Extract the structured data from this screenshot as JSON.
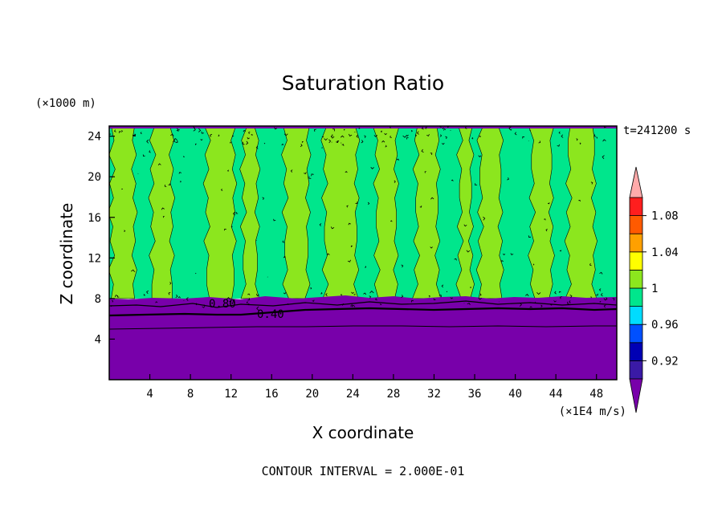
{
  "chart_data": {
    "type": "heatmap",
    "title": "Saturation Ratio",
    "xlabel": "X coordinate",
    "ylabel": "Z coordinate",
    "x_units": "(×1E4 m/s)",
    "y_units": "(×1000 m)",
    "time_label": "t=241200 s",
    "footer": "CONTOUR INTERVAL = 2.000E-01",
    "xlim": [
      0,
      50
    ],
    "ylim": [
      0,
      25
    ],
    "x_ticks": [
      "4",
      "8",
      "12",
      "16",
      "20",
      "24",
      "28",
      "32",
      "36",
      "40",
      "44",
      "48"
    ],
    "y_ticks": [
      "4",
      "8",
      "12",
      "16",
      "20",
      "24"
    ],
    "contour_labels": [
      "0.80",
      "0.40"
    ],
    "colorbar": {
      "levels": [
        0.9,
        0.92,
        0.94,
        0.96,
        0.98,
        1.0,
        1.02,
        1.04,
        1.06,
        1.08,
        1.1
      ],
      "tick_labels": [
        "0.92",
        "0.96",
        "1",
        "1.04",
        "1.08"
      ],
      "colors": [
        "#3a1aa6",
        "#0000b4",
        "#0050ff",
        "#00dcff",
        "#00e68c",
        "#8ce61e",
        "#ffff00",
        "#ffa000",
        "#ff5a00",
        "#ff1e1e"
      ],
      "under_color": "#7800aa",
      "over_color": "#ffaaaa"
    },
    "regions": {
      "lower_layer_value": "<0.90",
      "lower_layer_top_km": 8,
      "upper_field_values": [
        0.98,
        1.0
      ],
      "surface_band_top_km": 24.6
    }
  }
}
